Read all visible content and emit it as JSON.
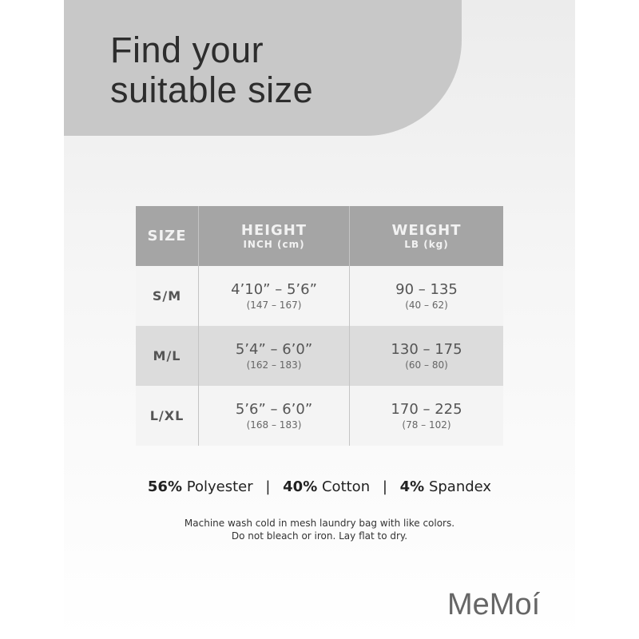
{
  "title_lines": [
    "Find your",
    "suitable size"
  ],
  "table": {
    "headers": [
      {
        "main": "SIZE",
        "sub": ""
      },
      {
        "main": "HEIGHT",
        "sub": "INCH (cm)"
      },
      {
        "main": "WEIGHT",
        "sub": "LB (kg)"
      }
    ],
    "rows": [
      {
        "size": "S/M",
        "height": "4’10” – 5’6”",
        "height_cm": "(147 – 167)",
        "weight": "90 – 135",
        "weight_kg": "(40 – 62)"
      },
      {
        "size": "M/L",
        "height": "5’4” – 6’0”",
        "height_cm": "(162 – 183)",
        "weight": "130 – 175",
        "weight_kg": "(60 – 80)"
      },
      {
        "size": "L/XL",
        "height": "5’6” – 6’0”",
        "height_cm": "(168 – 183)",
        "weight": "170 – 225",
        "weight_kg": "(78 – 102)"
      }
    ]
  },
  "fabric": [
    {
      "pct": "56%",
      "name": "Polyester"
    },
    {
      "pct": "40%",
      "name": "Cotton"
    },
    {
      "pct": "4%",
      "name": "Spandex"
    }
  ],
  "separator": "|",
  "care": [
    "Machine wash cold in mesh laundry bag with like colors.",
    "Do not bleach or iron. Lay flat to dry."
  ],
  "brand": "MeMoí",
  "colors": {
    "header_bg": "#a5a5a5",
    "blob": "#c8c8c8",
    "row_alt": "#dcdcdc"
  }
}
